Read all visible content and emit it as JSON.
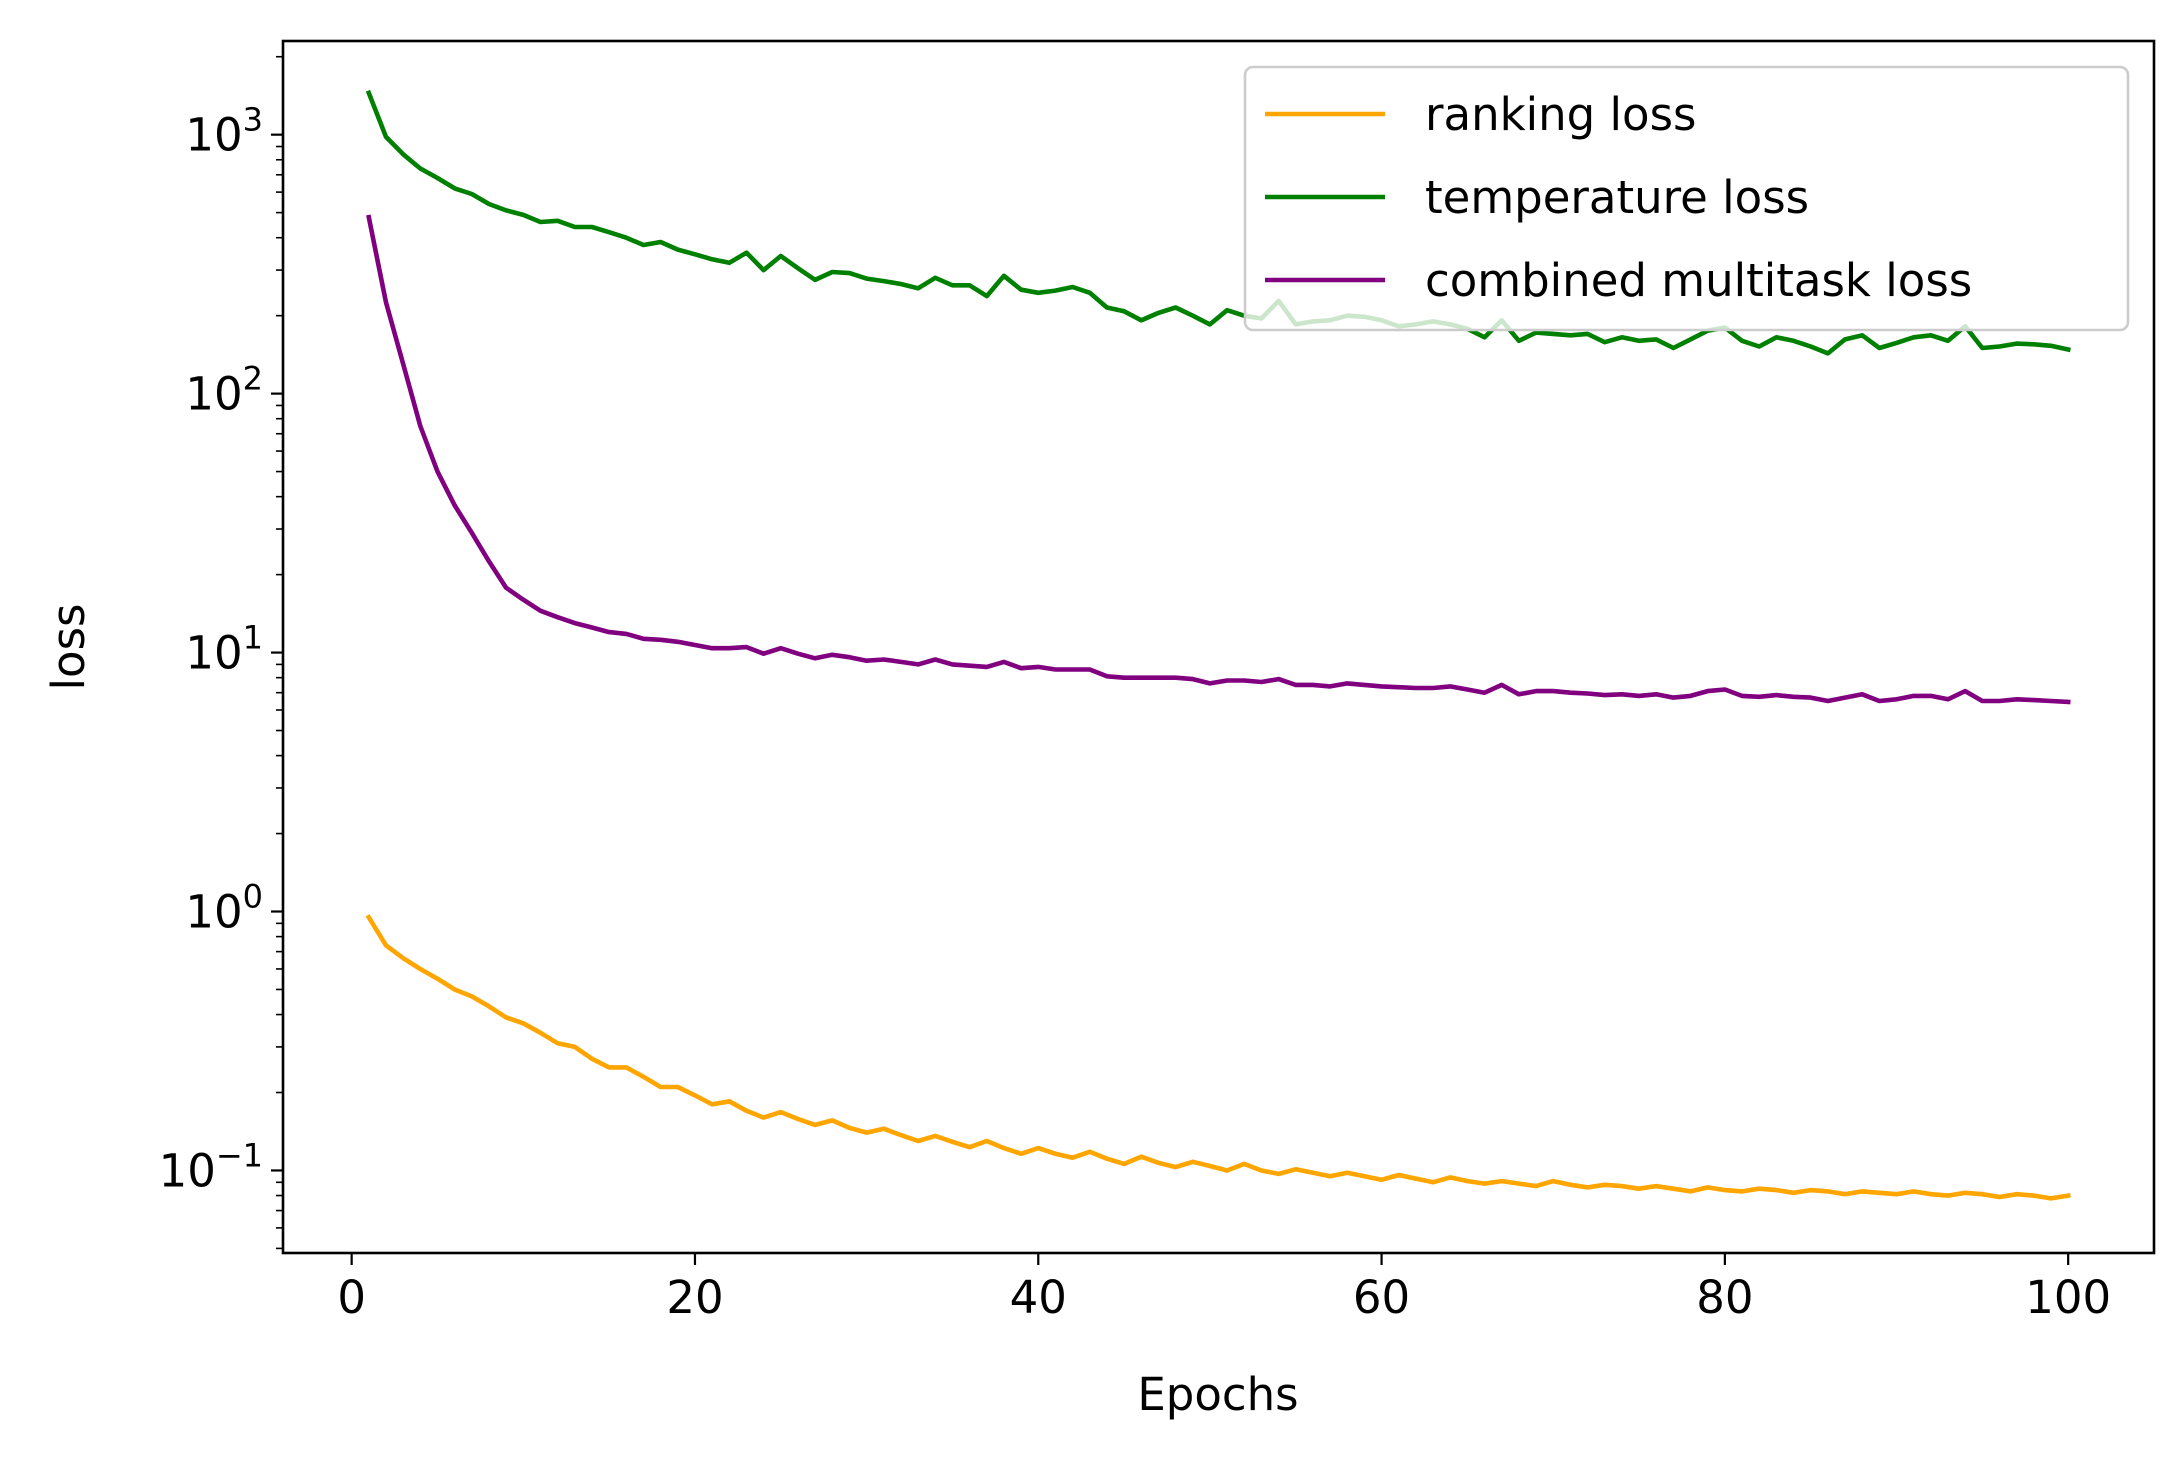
{
  "chart_data": {
    "type": "line",
    "title": "",
    "xlabel": "Epochs",
    "ylabel": "loss",
    "yscale": "log",
    "xlim": [
      -4,
      105
    ],
    "ylim": [
      0.048,
      2300
    ],
    "x_ticks": [
      0,
      20,
      40,
      60,
      80,
      100
    ],
    "x_tick_labels": [
      "0",
      "20",
      "40",
      "60",
      "80",
      "100"
    ],
    "y_ticks": [
      {
        "value": 0.1,
        "base": "10",
        "exp": "−1"
      },
      {
        "value": 1,
        "base": "10",
        "exp": "0"
      },
      {
        "value": 10,
        "base": "10",
        "exp": "1"
      },
      {
        "value": 100,
        "base": "10",
        "exp": "2"
      },
      {
        "value": 1000,
        "base": "10",
        "exp": "3"
      }
    ],
    "grid": false,
    "legend_position": "top-right",
    "x": [
      1,
      2,
      3,
      4,
      5,
      6,
      7,
      8,
      9,
      10,
      11,
      12,
      13,
      14,
      15,
      16,
      17,
      18,
      19,
      20,
      21,
      22,
      23,
      24,
      25,
      26,
      27,
      28,
      29,
      30,
      31,
      32,
      33,
      34,
      35,
      36,
      37,
      38,
      39,
      40,
      41,
      42,
      43,
      44,
      45,
      46,
      47,
      48,
      49,
      50,
      51,
      52,
      53,
      54,
      55,
      56,
      57,
      58,
      59,
      60,
      61,
      62,
      63,
      64,
      65,
      66,
      67,
      68,
      69,
      70,
      71,
      72,
      73,
      74,
      75,
      76,
      77,
      78,
      79,
      80,
      81,
      82,
      83,
      84,
      85,
      86,
      87,
      88,
      89,
      90,
      91,
      92,
      93,
      94,
      95,
      96,
      97,
      98,
      99,
      100
    ],
    "series": [
      {
        "name": "ranking loss",
        "color": "#ffa500",
        "values": [
          0.95,
          0.74,
          0.66,
          0.6,
          0.55,
          0.5,
          0.47,
          0.43,
          0.39,
          0.37,
          0.34,
          0.31,
          0.3,
          0.27,
          0.25,
          0.25,
          0.23,
          0.21,
          0.21,
          0.195,
          0.18,
          0.185,
          0.17,
          0.16,
          0.168,
          0.158,
          0.15,
          0.156,
          0.146,
          0.14,
          0.145,
          0.137,
          0.13,
          0.136,
          0.129,
          0.123,
          0.13,
          0.122,
          0.116,
          0.122,
          0.116,
          0.112,
          0.118,
          0.111,
          0.106,
          0.113,
          0.107,
          0.103,
          0.108,
          0.104,
          0.1,
          0.106,
          0.1,
          0.097,
          0.101,
          0.098,
          0.095,
          0.098,
          0.095,
          0.092,
          0.096,
          0.093,
          0.09,
          0.094,
          0.091,
          0.089,
          0.091,
          0.089,
          0.087,
          0.091,
          0.088,
          0.086,
          0.088,
          0.087,
          0.085,
          0.087,
          0.085,
          0.083,
          0.086,
          0.084,
          0.083,
          0.085,
          0.084,
          0.082,
          0.084,
          0.083,
          0.081,
          0.083,
          0.082,
          0.081,
          0.083,
          0.081,
          0.08,
          0.082,
          0.081,
          0.079,
          0.081,
          0.08,
          0.078,
          0.08
        ]
      },
      {
        "name": "temperature loss",
        "color": "#008000",
        "values": [
          1450,
          980,
          840,
          740,
          680,
          620,
          590,
          540,
          510,
          490,
          460,
          465,
          440,
          440,
          420,
          400,
          375,
          385,
          360,
          345,
          330,
          320,
          350,
          300,
          340,
          305,
          275,
          295,
          292,
          278,
          272,
          265,
          255,
          280,
          262,
          262,
          238,
          285,
          252,
          245,
          250,
          258,
          245,
          215,
          208,
          192,
          205,
          215,
          200,
          185,
          210,
          200,
          195,
          228,
          185,
          190,
          192,
          200,
          198,
          192,
          182,
          185,
          190,
          185,
          178,
          165,
          192,
          160,
          172,
          170,
          168,
          170,
          158,
          165,
          160,
          162,
          150,
          162,
          175,
          180,
          160,
          152,
          165,
          160,
          152,
          143,
          162,
          168,
          150,
          157,
          165,
          168,
          160,
          182,
          150,
          152,
          156,
          155,
          153,
          148
        ]
      },
      {
        "name": "combined multitask loss",
        "color": "#800080",
        "values": [
          480,
          225,
          130,
          75,
          50,
          37,
          29,
          22.5,
          17.8,
          16,
          14.5,
          13.7,
          13,
          12.5,
          12,
          11.8,
          11.3,
          11.2,
          11,
          10.7,
          10.4,
          10.4,
          10.5,
          9.9,
          10.4,
          9.9,
          9.5,
          9.8,
          9.6,
          9.3,
          9.4,
          9.2,
          9,
          9.4,
          9,
          8.9,
          8.8,
          9.2,
          8.7,
          8.8,
          8.6,
          8.6,
          8.6,
          8.1,
          8,
          8,
          8,
          8,
          7.9,
          7.6,
          7.8,
          7.8,
          7.7,
          7.9,
          7.5,
          7.5,
          7.4,
          7.6,
          7.5,
          7.4,
          7.35,
          7.3,
          7.3,
          7.4,
          7.2,
          7,
          7.5,
          6.9,
          7.1,
          7.1,
          7,
          6.95,
          6.85,
          6.9,
          6.8,
          6.9,
          6.7,
          6.8,
          7.1,
          7.2,
          6.8,
          6.75,
          6.85,
          6.75,
          6.7,
          6.5,
          6.7,
          6.9,
          6.5,
          6.6,
          6.8,
          6.8,
          6.6,
          7.1,
          6.5,
          6.5,
          6.6,
          6.55,
          6.5,
          6.45
        ]
      }
    ]
  }
}
